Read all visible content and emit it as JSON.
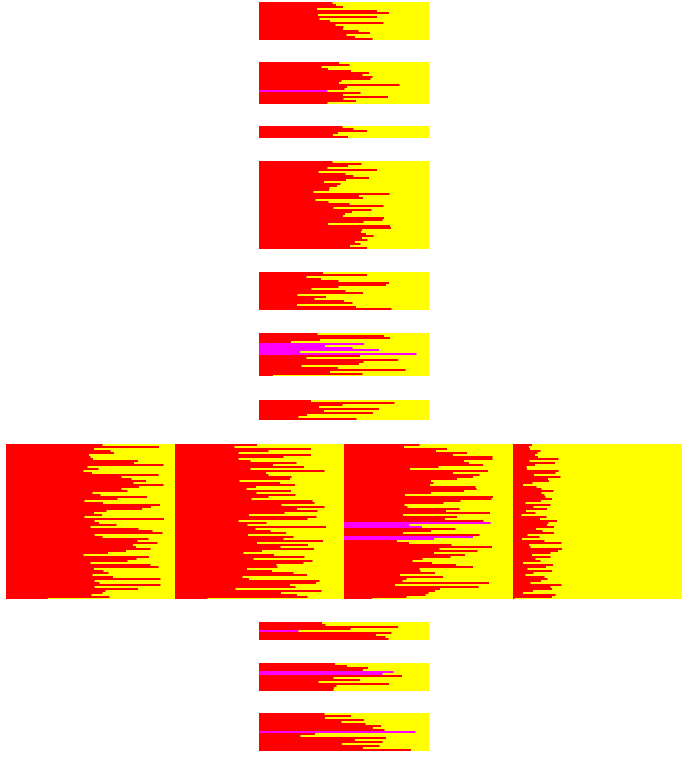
{
  "figure": {
    "background_color": "#ffffff",
    "panel_fill_color": "#ffff00",
    "primary_bar_color": "#ff0000",
    "secondary_bar_color": "#ff00ff",
    "panel_count": 14
  }
}
